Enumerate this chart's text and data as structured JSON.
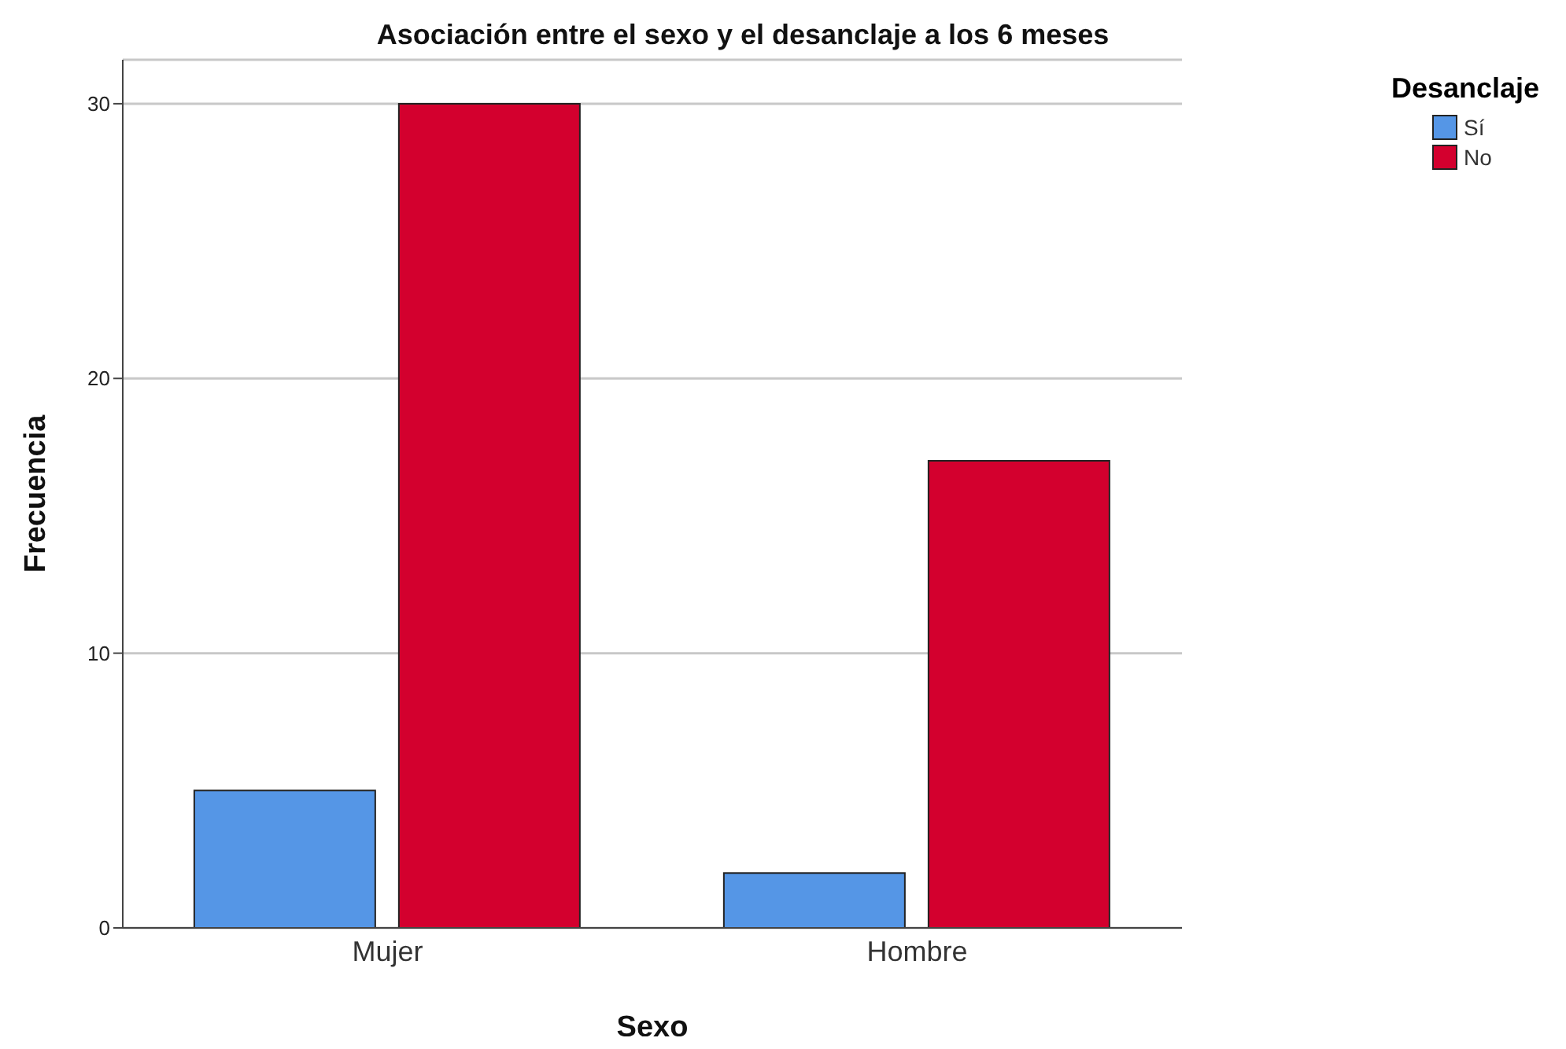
{
  "chart_data": {
    "type": "bar",
    "title": "Asociación entre el sexo y el desanclaje a los 6 meses",
    "xlabel": "Sexo",
    "ylabel": "Frecuencia",
    "legend_title": "Desanclaje",
    "categories": [
      "Mujer",
      "Hombre"
    ],
    "series": [
      {
        "name": "Sí",
        "color": "#5596e6",
        "values": [
          5,
          2
        ]
      },
      {
        "name": "No",
        "color": "#d3002e",
        "values": [
          30,
          17
        ]
      }
    ],
    "ylim": [
      0,
      31.6
    ],
    "yticks": [
      0,
      10,
      20,
      30
    ],
    "grid": "y",
    "legend": "top right"
  }
}
